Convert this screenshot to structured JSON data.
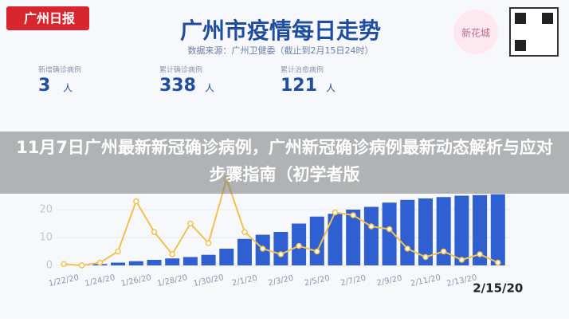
{
  "logo": "广州日报",
  "badge": "新花城",
  "headline": "11月7日广州最新新冠确诊病例，广州新冠确诊病例最新动态解析与应对步骤指南（初学者版",
  "stats": [
    {
      "label": "新增确诊病例",
      "value": 3,
      "unit": "人"
    },
    {
      "label": "累计确诊病例",
      "value": 338,
      "unit": "人"
    },
    {
      "label": "累计治愈病例",
      "value": 121,
      "unit": "人"
    }
  ],
  "chart_data": {
    "type": "bar-line",
    "title": "广州市疫情每日走势",
    "subtitle": "数据来源：广州卫健委（截止到2月15日24时）",
    "categories": [
      "1/22/20",
      null,
      "1/24/20",
      null,
      "1/26/20",
      null,
      "1/28/20",
      null,
      "1/30/20",
      null,
      "2/1/20",
      null,
      "2/3/20",
      null,
      "2/5/20",
      null,
      "2/7/20",
      null,
      "2/9/20",
      null,
      "2/11/20",
      null,
      "2/13/20",
      null,
      "2/15/20"
    ],
    "ylim": [
      0,
      40
    ],
    "yticks": [
      0,
      10,
      20
    ],
    "series": [
      {
        "kind": "bar",
        "color": "#2f5fd0",
        "values": [
          0,
          0.3,
          0.5,
          1,
          1.5,
          2,
          2.5,
          3,
          3.8,
          6,
          9.5,
          11,
          12,
          15,
          17.5,
          18.5,
          20,
          21,
          22.5,
          23.5,
          24,
          24.5,
          25,
          25.2,
          25.5
        ]
      },
      {
        "kind": "line",
        "color": "#f2c14e",
        "values": [
          0.5,
          0,
          1,
          5,
          23,
          12,
          4,
          15,
          8,
          31,
          12,
          6,
          4,
          7,
          5,
          19,
          18,
          14,
          13,
          6,
          3,
          5,
          2,
          4,
          1
        ]
      }
    ],
    "grid": true
  }
}
